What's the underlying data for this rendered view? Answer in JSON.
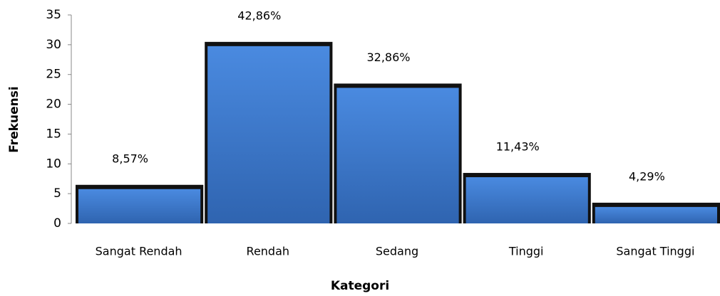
{
  "chart_data": {
    "type": "bar",
    "y_label": "Frekuensi",
    "x_label": "Kategori",
    "categories": [
      "Sangat Rendah",
      "Rendah",
      "Sedang",
      "Tinggi",
      "Sangat Tinggi"
    ],
    "values": [
      6,
      30,
      23,
      8,
      3
    ],
    "annotations": [
      "8,57%",
      "42,86%",
      "32,86%",
      "11,43%",
      "4,29%"
    ],
    "color": "#3f7fd6",
    "ylim": [
      0,
      35
    ],
    "yticks": [
      0,
      5,
      10,
      15,
      20,
      25,
      30,
      35
    ],
    "grid": false
  }
}
